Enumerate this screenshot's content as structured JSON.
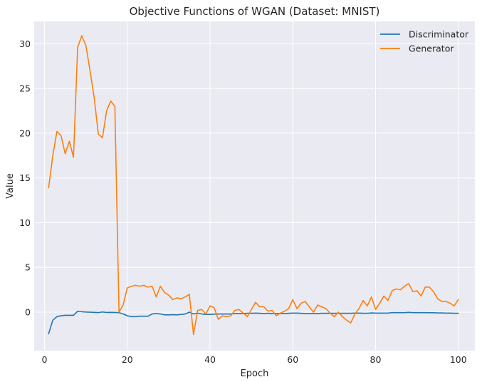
{
  "chart_data": {
    "type": "line",
    "title": "Objective Functions of WGAN (Dataset: MNIST)",
    "xlabel": "Epoch",
    "ylabel": "Value",
    "xlim": [
      -2.5,
      104.0
    ],
    "ylim": [
      -4.3,
      32.5
    ],
    "xticks": [
      0,
      20,
      40,
      60,
      80,
      100
    ],
    "yticks": [
      0,
      5,
      10,
      15,
      20,
      25,
      30
    ],
    "grid": true,
    "legend_position": "top-right",
    "background": "#eaeaf2",
    "grid_color": "#ffffff",
    "x": [
      1,
      2,
      3,
      4,
      5,
      6,
      7,
      8,
      9,
      10,
      11,
      12,
      13,
      14,
      15,
      16,
      17,
      18,
      19,
      20,
      21,
      22,
      23,
      24,
      25,
      26,
      27,
      28,
      29,
      30,
      31,
      32,
      33,
      34,
      35,
      36,
      37,
      38,
      39,
      40,
      41,
      42,
      43,
      44,
      45,
      46,
      47,
      48,
      49,
      50,
      51,
      52,
      53,
      54,
      55,
      56,
      57,
      58,
      59,
      60,
      61,
      62,
      63,
      64,
      65,
      66,
      67,
      68,
      69,
      70,
      71,
      72,
      73,
      74,
      75,
      76,
      77,
      78,
      79,
      80,
      81,
      82,
      83,
      84,
      85,
      86,
      87,
      88,
      89,
      90,
      91,
      92,
      93,
      94,
      95,
      96,
      97,
      98,
      99,
      100
    ],
    "series": [
      {
        "name": "Discriminator",
        "color": "#1f77b4",
        "values": [
          -2.4,
          -0.9,
          -0.5,
          -0.4,
          -0.35,
          -0.35,
          -0.35,
          0.1,
          0.05,
          0.02,
          0.0,
          -0.02,
          -0.05,
          0.02,
          -0.03,
          -0.02,
          -0.03,
          -0.05,
          -0.2,
          -0.4,
          -0.5,
          -0.5,
          -0.45,
          -0.45,
          -0.45,
          -0.2,
          -0.15,
          -0.2,
          -0.3,
          -0.3,
          -0.28,
          -0.3,
          -0.25,
          -0.2,
          0.0,
          -0.2,
          -0.1,
          -0.2,
          -0.25,
          -0.25,
          -0.22,
          -0.2,
          -0.2,
          -0.2,
          -0.2,
          -0.15,
          -0.15,
          -0.15,
          -0.12,
          -0.12,
          -0.1,
          -0.12,
          -0.15,
          -0.12,
          -0.15,
          -0.15,
          -0.15,
          -0.15,
          -0.12,
          -0.1,
          -0.1,
          -0.12,
          -0.15,
          -0.15,
          -0.15,
          -0.15,
          -0.12,
          -0.12,
          -0.12,
          -0.12,
          -0.12,
          -0.12,
          -0.12,
          -0.12,
          -0.1,
          -0.1,
          -0.12,
          -0.12,
          -0.08,
          -0.1,
          -0.1,
          -0.1,
          -0.1,
          -0.05,
          -0.05,
          -0.05,
          -0.05,
          -0.02,
          -0.05,
          -0.05,
          -0.05,
          -0.05,
          -0.06,
          -0.06,
          -0.08,
          -0.08,
          -0.1,
          -0.1,
          -0.12,
          -0.12
        ]
      },
      {
        "name": "Generator",
        "color": "#ff7f0e",
        "values": [
          13.9,
          17.5,
          20.2,
          19.7,
          17.7,
          19.1,
          17.3,
          29.6,
          30.9,
          29.8,
          27.0,
          24.0,
          19.9,
          19.5,
          22.5,
          23.6,
          23.0,
          0.0,
          0.8,
          2.7,
          2.9,
          3.0,
          2.9,
          3.0,
          2.8,
          2.9,
          1.7,
          2.9,
          2.2,
          1.9,
          1.4,
          1.6,
          1.5,
          1.7,
          2.0,
          -2.5,
          0.2,
          0.3,
          -0.2,
          0.7,
          0.5,
          -0.8,
          -0.4,
          -0.5,
          -0.4,
          0.2,
          0.3,
          -0.1,
          -0.5,
          0.3,
          1.1,
          0.6,
          0.6,
          0.1,
          0.2,
          -0.4,
          -0.1,
          0.1,
          0.4,
          1.4,
          0.4,
          1.0,
          1.2,
          0.6,
          0.0,
          0.8,
          0.6,
          0.4,
          -0.1,
          -0.5,
          0.0,
          -0.5,
          -0.9,
          -1.2,
          -0.2,
          0.4,
          1.3,
          0.7,
          1.7,
          0.3,
          1.0,
          1.8,
          1.3,
          2.4,
          2.6,
          2.5,
          2.9,
          3.2,
          2.3,
          2.4,
          1.8,
          2.8,
          2.8,
          2.3,
          1.5,
          1.2,
          1.2,
          1.0,
          0.7,
          1.4
        ]
      }
    ]
  }
}
